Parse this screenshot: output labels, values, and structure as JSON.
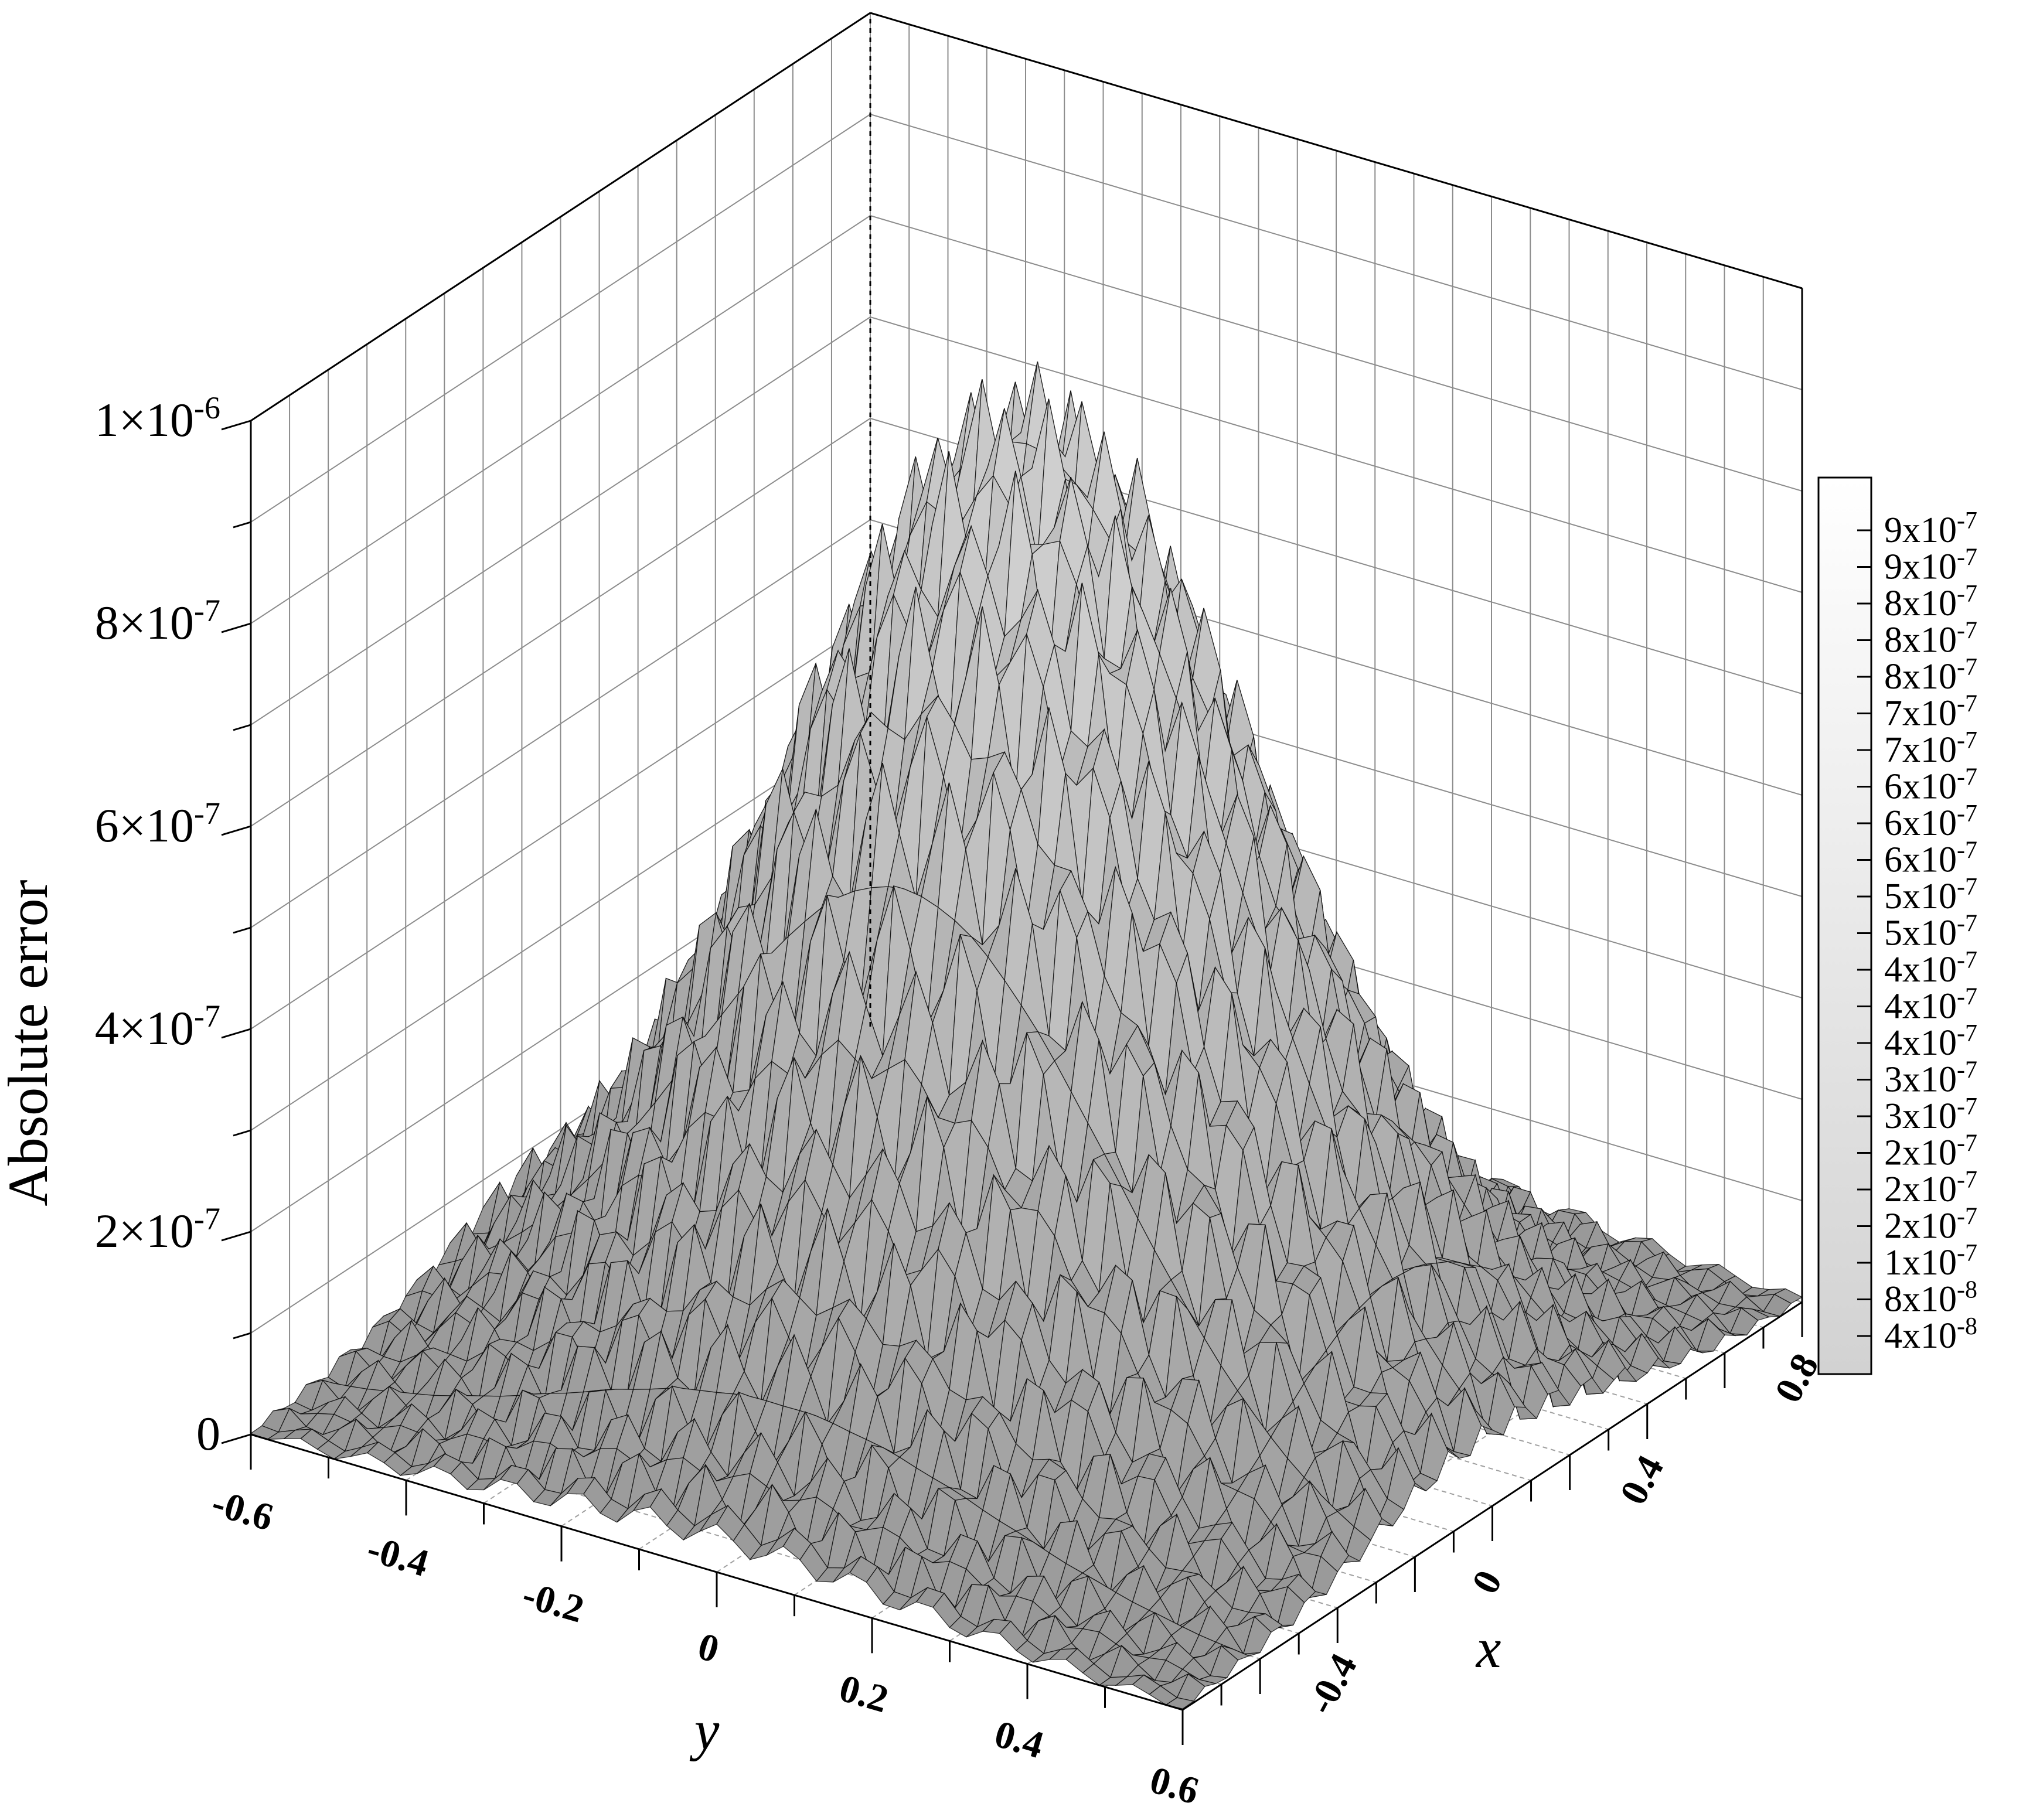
{
  "chart_data": {
    "type": "surface3d",
    "zlabel": "Absolute error",
    "xlabel": "x",
    "ylabel": "y",
    "x_range": [
      -0.8,
      0.8
    ],
    "y_range": [
      -0.6,
      0.6
    ],
    "z_range": [
      0,
      1e-06
    ],
    "x_ticks": [
      "-0.4",
      "0",
      "0.4",
      "0.8"
    ],
    "x_tick_values": [
      -0.4,
      0,
      0.4,
      0.8
    ],
    "y_ticks": [
      "-0.6",
      "-0.4",
      "-0.2",
      "0",
      "0.2",
      "0.4",
      "0.6"
    ],
    "y_tick_values": [
      -0.6,
      -0.4,
      -0.2,
      0,
      0.2,
      0.4,
      0.6
    ],
    "z_ticks": [
      {
        "value": 0,
        "mant": "0",
        "exp": ""
      },
      {
        "value": 2e-07,
        "mant": "2×10",
        "exp": "-7"
      },
      {
        "value": 4e-07,
        "mant": "4×10",
        "exp": "-7"
      },
      {
        "value": 6e-07,
        "mant": "6×10",
        "exp": "-7"
      },
      {
        "value": 8e-07,
        "mant": "8×10",
        "exp": "-7"
      },
      {
        "value": 1e-06,
        "mant": "1×10",
        "exp": "-6"
      }
    ],
    "surface": {
      "peak_value": 9.5e-07,
      "peak_x": 0.0,
      "peak_y": 0.0,
      "shape": "bell-shaped with oscillatory ripples",
      "colormap": "grayscale"
    },
    "legend": {
      "placement": "right",
      "levels": [
        {
          "mant": "9x10",
          "exp": "-7"
        },
        {
          "mant": "9x10",
          "exp": "-7"
        },
        {
          "mant": "8x10",
          "exp": "-7"
        },
        {
          "mant": "8x10",
          "exp": "-7"
        },
        {
          "mant": "8x10",
          "exp": "-7"
        },
        {
          "mant": "7x10",
          "exp": "-7"
        },
        {
          "mant": "7x10",
          "exp": "-7"
        },
        {
          "mant": "6x10",
          "exp": "-7"
        },
        {
          "mant": "6x10",
          "exp": "-7"
        },
        {
          "mant": "6x10",
          "exp": "-7"
        },
        {
          "mant": "5x10",
          "exp": "-7"
        },
        {
          "mant": "5x10",
          "exp": "-7"
        },
        {
          "mant": "4x10",
          "exp": "-7"
        },
        {
          "mant": "4x10",
          "exp": "-7"
        },
        {
          "mant": "4x10",
          "exp": "-7"
        },
        {
          "mant": "3x10",
          "exp": "-7"
        },
        {
          "mant": "3x10",
          "exp": "-7"
        },
        {
          "mant": "2x10",
          "exp": "-7"
        },
        {
          "mant": "2x10",
          "exp": "-7"
        },
        {
          "mant": "2x10",
          "exp": "-7"
        },
        {
          "mant": "1x10",
          "exp": "-7"
        },
        {
          "mant": "8x10",
          "exp": "-8"
        },
        {
          "mant": "4x10",
          "exp": "-8"
        }
      ]
    },
    "grid": true
  },
  "colors": {
    "background": "#ffffff",
    "grid": "#8c8c8c",
    "surface_light": "#f2f2f2",
    "surface_dark": "#3a3a3a",
    "mesh": "#000000"
  }
}
